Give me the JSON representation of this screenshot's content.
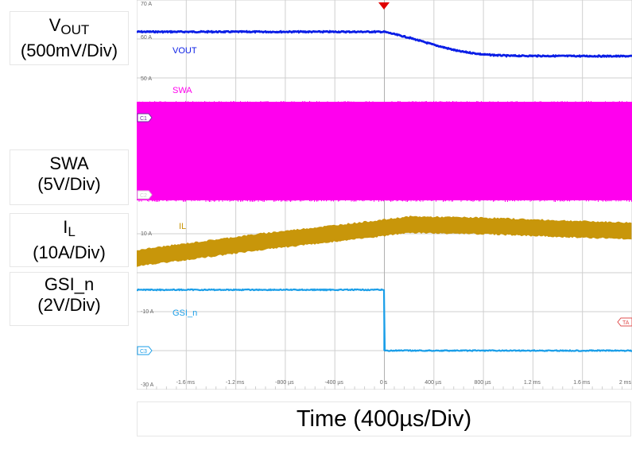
{
  "labels": {
    "vout": {
      "main": "V",
      "sub": "OUT",
      "div": "(500mV/Div)"
    },
    "swa": {
      "main": "SWA",
      "div": "(5V/Div)"
    },
    "il": {
      "main": "I",
      "sub": "L",
      "div": "(10A/Div)"
    },
    "gsi": {
      "main": "GSI_n",
      "div": "(2V/Div)"
    }
  },
  "time_label": "Time (400µs/Div)",
  "chart_data": {
    "type": "line",
    "title": "",
    "xlabel": "Time (400µs/Div)",
    "x_unit": "ms",
    "xlim": [
      -2.0,
      2.0
    ],
    "x_ticks": [
      "-1.6 ms",
      "-1.2 ms",
      "-800 µs",
      "-400 µs",
      "0 s",
      "400 µs",
      "800 µs",
      "1.2 ms",
      "1.6 ms",
      "2 ms"
    ],
    "y_ticks": [
      "70 A",
      "60 A",
      "50 A",
      "10 A",
      "-10 A",
      "-30 A"
    ],
    "channel_markers": [
      "C1",
      "C2",
      "C3",
      "TA"
    ],
    "series": [
      {
        "name": "VOUT",
        "color": "#0a1ee6",
        "label_text": "VOUT",
        "x": [
          -2.0,
          0.0,
          0.2,
          0.4,
          0.6,
          0.8,
          1.0,
          1.4,
          2.0
        ],
        "y": [
          0.0,
          0.0,
          -0.14,
          -0.31,
          -0.46,
          -0.54,
          -0.57,
          -0.575,
          -0.58
        ]
      },
      {
        "name": "SWA",
        "color": "#ff00ee",
        "label_text": "SWA",
        "x": [
          -2.0,
          2.0
        ],
        "y": [
          0.0,
          0.0
        ]
      },
      {
        "name": "IL",
        "color": "#c8960a",
        "label_text": "IL",
        "x": [
          -2.0,
          -1.0,
          0.0,
          0.2,
          0.8,
          1.4,
          2.0
        ],
        "y": [
          -0.28,
          0.14,
          0.5,
          0.58,
          0.55,
          0.48,
          0.42
        ]
      },
      {
        "name": "GSI_n",
        "color": "#1a9ee8",
        "label_text": "GSI_n",
        "x": [
          -2.0,
          0.0,
          0.0,
          2.0
        ],
        "y": [
          3.0,
          3.0,
          0.0,
          0.0
        ]
      }
    ]
  },
  "colors": {
    "grid": "#cfcfcf",
    "trigger": "#e00000",
    "vout": "#0a1ee6",
    "swa": "#ff00ee",
    "il": "#c8960a",
    "gsi": "#1a9ee8"
  }
}
